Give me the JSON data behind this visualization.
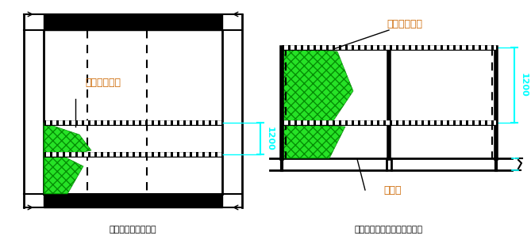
{
  "bg_color": "#ffffff",
  "line_color": "#000000",
  "green_fill": "#00dd00",
  "cyan_color": "#00ffff",
  "label1": "张密目安全网",
  "label2": "四周围竹篹笼",
  "label3": "楼板洞",
  "dim_label": "1200",
  "caption1": "楼层周边防护立面图",
  "caption2": "大洞口及楼层周边防护立面图",
  "orange_text": "#cc6600"
}
